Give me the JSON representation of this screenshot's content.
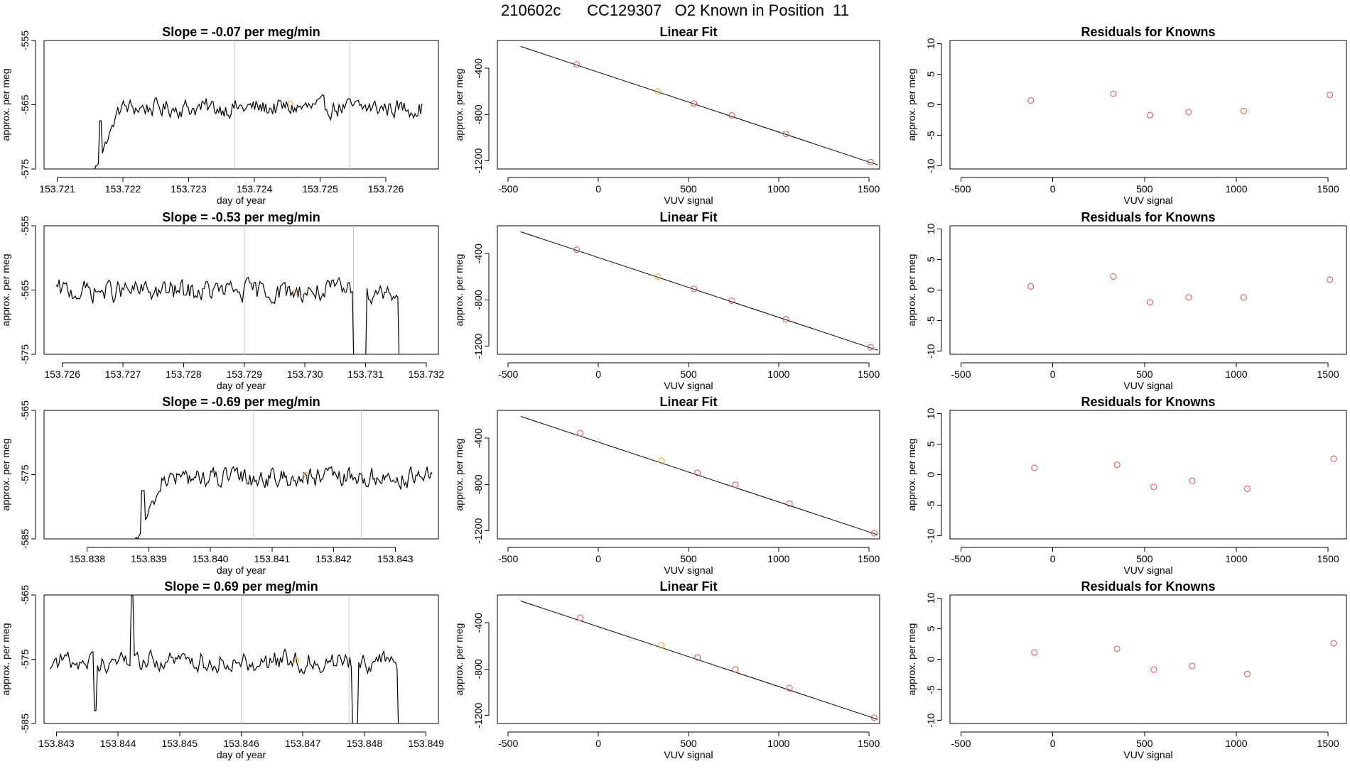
{
  "title": "210602c      CC129307   O2 Known in Position  11",
  "colors": {
    "series": "#000000",
    "point": "#d9534f",
    "highlight": "#f0a030",
    "vline": "#c8c8c8"
  },
  "chart_data": [
    {
      "row": 0,
      "type": "line",
      "title": "Slope =  -0.07  per meg/min",
      "xlabel": "day of year",
      "ylabel": "approx. per meg",
      "xlim": [
        153.7208,
        153.7268
      ],
      "ylim": [
        -575,
        -555
      ],
      "xticks": [
        153.721,
        153.722,
        153.723,
        153.724,
        153.725,
        153.726
      ],
      "xtick_labels": [
        "153.721",
        "153.722",
        "153.723",
        "153.724",
        "153.725",
        "153.726"
      ],
      "yticks": [
        -575,
        -565,
        -555
      ],
      "ytick_labels": [
        "-575",
        "-565",
        "-555"
      ],
      "x_start": 153.7215,
      "x_end": 153.72655,
      "baseline": -565.5,
      "noise": 1.6,
      "ramp_end": 153.7219,
      "ramp_from": -577,
      "dropouts": [],
      "vlines": [
        153.7237,
        153.72545
      ],
      "highlight": {
        "x": 153.72455,
        "y": -564.8
      }
    },
    {
      "row": 0,
      "type": "scatter",
      "title": "Linear Fit",
      "xlabel": "VUV signal",
      "ylabel": "approx. per meg",
      "xlim": [
        -560,
        1560
      ],
      "ylim": [
        -1270,
        -160
      ],
      "xticks": [
        -500,
        0,
        500,
        1000,
        1500
      ],
      "xtick_labels": [
        "-500",
        "0",
        "500",
        "1000",
        "1500"
      ],
      "yticks": [
        -1200,
        -800,
        -400
      ],
      "ytick_labels": [
        "-1200",
        "-800",
        "-400"
      ],
      "line": {
        "x": [
          -430,
          1550
        ],
        "y": [
          -212,
          -1235
        ]
      },
      "points": {
        "x": [
          -120,
          330,
          530,
          740,
          1040,
          1510
        ],
        "y": [
          -367,
          -600,
          -705,
          -807,
          -967,
          -1210
        ]
      },
      "highlight_index": 1
    },
    {
      "row": 0,
      "type": "scatter",
      "title": "Residuals for Knowns",
      "xlabel": "VUV signal",
      "ylabel": "approx. per meg",
      "xlim": [
        -560,
        1600
      ],
      "ylim": [
        -10.5,
        10.5
      ],
      "xticks": [
        -500,
        0,
        500,
        1000,
        1500
      ],
      "xtick_labels": [
        "-500",
        "0",
        "500",
        "1000",
        "1500"
      ],
      "yticks": [
        -10,
        -5,
        0,
        5,
        10
      ],
      "ytick_labels": [
        "-10",
        "-5",
        "0",
        "5",
        "10"
      ],
      "points": {
        "x": [
          -120,
          330,
          530,
          740,
          1040,
          1510
        ],
        "y": [
          0.7,
          1.8,
          -1.7,
          -1.2,
          -1.0,
          1.6
        ]
      }
    },
    {
      "row": 1,
      "type": "line",
      "title": "Slope =  -0.53  per meg/min",
      "xlabel": "day of year",
      "ylabel": "approx. per meg",
      "xlim": [
        153.7257,
        153.7322
      ],
      "ylim": [
        -575,
        -555
      ],
      "xticks": [
        153.726,
        153.727,
        153.728,
        153.729,
        153.73,
        153.731,
        153.732
      ],
      "xtick_labels": [
        "153.726",
        "153.727",
        "153.728",
        "153.729",
        "153.730",
        "153.731",
        "153.732"
      ],
      "yticks": [
        -575,
        -565,
        -555
      ],
      "ytick_labels": [
        "-575",
        "-565",
        "-555"
      ],
      "x_start": 153.7259,
      "x_end": 153.7317,
      "baseline": -565.2,
      "noise": 1.9,
      "ramp_end": null,
      "ramp_from": null,
      "dropouts": [
        [
          153.7308,
          153.731,
          -577
        ],
        [
          153.73155,
          153.7317,
          -577
        ]
      ],
      "vlines": [
        153.729,
        153.7308
      ],
      "highlight": {
        "x": 153.72985,
        "y": -565.3
      }
    },
    {
      "row": 1,
      "type": "scatter",
      "title": "Linear Fit",
      "xlabel": "VUV signal",
      "ylabel": "approx. per meg",
      "xlim": [
        -560,
        1560
      ],
      "ylim": [
        -1270,
        -160
      ],
      "xticks": [
        -500,
        0,
        500,
        1000,
        1500
      ],
      "xtick_labels": [
        "-500",
        "0",
        "500",
        "1000",
        "1500"
      ],
      "yticks": [
        -1200,
        -800,
        -400
      ],
      "ytick_labels": [
        "-1200",
        "-800",
        "-400"
      ],
      "line": {
        "x": [
          -430,
          1550
        ],
        "y": [
          -212,
          -1235
        ]
      },
      "points": {
        "x": [
          -120,
          330,
          530,
          740,
          1040,
          1510
        ],
        "y": [
          -367,
          -600,
          -705,
          -807,
          -967,
          -1210
        ]
      },
      "highlight_index": 1
    },
    {
      "row": 1,
      "type": "scatter",
      "title": "Residuals for Knowns",
      "xlabel": "VUV signal",
      "ylabel": "approx. per meg",
      "xlim": [
        -560,
        1600
      ],
      "ylim": [
        -10.5,
        10.5
      ],
      "xticks": [
        -500,
        0,
        500,
        1000,
        1500
      ],
      "xtick_labels": [
        "-500",
        "0",
        "500",
        "1000",
        "1500"
      ],
      "yticks": [
        -10,
        -5,
        0,
        5,
        10
      ],
      "ytick_labels": [
        "-10",
        "-5",
        "0",
        "5",
        "10"
      ],
      "points": {
        "x": [
          -120,
          330,
          530,
          740,
          1040,
          1510
        ],
        "y": [
          0.6,
          2.2,
          -2.0,
          -1.2,
          -1.2,
          1.7
        ]
      }
    },
    {
      "row": 2,
      "type": "line",
      "title": "Slope =  -0.69  per meg/min",
      "xlabel": "day of year",
      "ylabel": "approx. per meg",
      "xlim": [
        153.8373,
        153.8437
      ],
      "ylim": [
        -585,
        -565
      ],
      "xticks": [
        153.838,
        153.839,
        153.84,
        153.841,
        153.842,
        153.843
      ],
      "xtick_labels": [
        "153.838",
        "153.839",
        "153.840",
        "153.841",
        "153.842",
        "153.843"
      ],
      "yticks": [
        -585,
        -575,
        -565
      ],
      "ytick_labels": [
        "-585",
        "-575",
        "-565"
      ],
      "x_start": 153.8387,
      "x_end": 153.8436,
      "baseline": -575.5,
      "noise": 1.7,
      "ramp_end": 153.8392,
      "ramp_from": -587,
      "dropouts": [],
      "vlines": [
        153.8407,
        153.84245
      ],
      "highlight": {
        "x": 153.84155,
        "y": -575.0
      }
    },
    {
      "row": 2,
      "type": "scatter",
      "title": "Linear Fit",
      "xlabel": "VUV signal",
      "ylabel": "approx. per meg",
      "xlim": [
        -560,
        1560
      ],
      "ylim": [
        -1270,
        -160
      ],
      "xticks": [
        -500,
        0,
        500,
        1000,
        1500
      ],
      "xtick_labels": [
        "-500",
        "0",
        "500",
        "1000",
        "1500"
      ],
      "yticks": [
        -1200,
        -800,
        -400
      ],
      "ytick_labels": [
        "-1200",
        "-800",
        "-400"
      ],
      "line": {
        "x": [
          -430,
          1550
        ],
        "y": [
          -212,
          -1235
        ]
      },
      "points": {
        "x": [
          -100,
          350,
          550,
          760,
          1060,
          1530
        ],
        "y": [
          -357,
          -595,
          -700,
          -803,
          -965,
          -1220
        ]
      },
      "highlight_index": 1
    },
    {
      "row": 2,
      "type": "scatter",
      "title": "Residuals for Knowns",
      "xlabel": "VUV signal",
      "ylabel": "approx. per meg",
      "xlim": [
        -560,
        1600
      ],
      "ylim": [
        -10.5,
        10.5
      ],
      "xticks": [
        -500,
        0,
        500,
        1000,
        1500
      ],
      "xtick_labels": [
        "-500",
        "0",
        "500",
        "1000",
        "1500"
      ],
      "yticks": [
        -10,
        -5,
        0,
        5,
        10
      ],
      "ytick_labels": [
        "-10",
        "-5",
        "0",
        "5",
        "10"
      ],
      "points": {
        "x": [
          -100,
          350,
          550,
          760,
          1060,
          1530
        ],
        "y": [
          1.1,
          1.6,
          -2.0,
          -1.0,
          -2.3,
          2.6
        ]
      }
    },
    {
      "row": 3,
      "type": "line",
      "title": "Slope =  0.69  per meg/min",
      "xlabel": "day of year",
      "ylabel": "approx. per meg",
      "xlim": [
        153.8428,
        153.8492
      ],
      "ylim": [
        -585,
        -565
      ],
      "xticks": [
        153.843,
        153.844,
        153.845,
        153.846,
        153.847,
        153.848,
        153.849
      ],
      "xtick_labels": [
        "153.843",
        "153.844",
        "153.845",
        "153.846",
        "153.847",
        "153.848",
        "153.849"
      ],
      "yticks": [
        -585,
        -575,
        -565
      ],
      "ytick_labels": [
        "-585",
        "-575",
        "-565"
      ],
      "x_start": 153.8429,
      "x_end": 153.84865,
      "baseline": -575.3,
      "noise": 1.8,
      "ramp_end": null,
      "ramp_from": null,
      "dropouts": [
        [
          153.8436,
          153.84365,
          -583
        ],
        [
          153.8442,
          153.84425,
          -565
        ],
        [
          153.8478,
          153.8479,
          -587
        ],
        [
          153.84855,
          153.84865,
          -587
        ]
      ],
      "vlines": [
        153.846,
        153.84775
      ],
      "highlight": {
        "x": 153.8469,
        "y": -575.2
      }
    },
    {
      "row": 3,
      "type": "scatter",
      "title": "Linear Fit",
      "xlabel": "VUV signal",
      "ylabel": "approx. per meg",
      "xlim": [
        -560,
        1560
      ],
      "ylim": [
        -1270,
        -160
      ],
      "xticks": [
        -500,
        0,
        500,
        1000,
        1500
      ],
      "xtick_labels": [
        "-500",
        "0",
        "500",
        "1000",
        "1500"
      ],
      "yticks": [
        -1200,
        -800,
        -400
      ],
      "ytick_labels": [
        "-1200",
        "-800",
        "-400"
      ],
      "line": {
        "x": [
          -430,
          1550
        ],
        "y": [
          -212,
          -1235
        ]
      },
      "points": {
        "x": [
          -100,
          350,
          550,
          760,
          1060,
          1530
        ],
        "y": [
          -357,
          -595,
          -700,
          -803,
          -965,
          -1220
        ]
      },
      "highlight_index": 1
    },
    {
      "row": 3,
      "type": "scatter",
      "title": "Residuals for Knowns",
      "xlabel": "VUV signal",
      "ylabel": "approx. per meg",
      "xlim": [
        -560,
        1600
      ],
      "ylim": [
        -10.5,
        10.5
      ],
      "xticks": [
        -500,
        0,
        500,
        1000,
        1500
      ],
      "xtick_labels": [
        "-500",
        "0",
        "500",
        "1000",
        "1500"
      ],
      "yticks": [
        -10,
        -5,
        0,
        5,
        10
      ],
      "ytick_labels": [
        "-10",
        "-5",
        "0",
        "5",
        "10"
      ],
      "points": {
        "x": [
          -100,
          350,
          550,
          760,
          1060,
          1530
        ],
        "y": [
          1.1,
          1.7,
          -1.7,
          -1.1,
          -2.4,
          2.6
        ]
      }
    }
  ]
}
